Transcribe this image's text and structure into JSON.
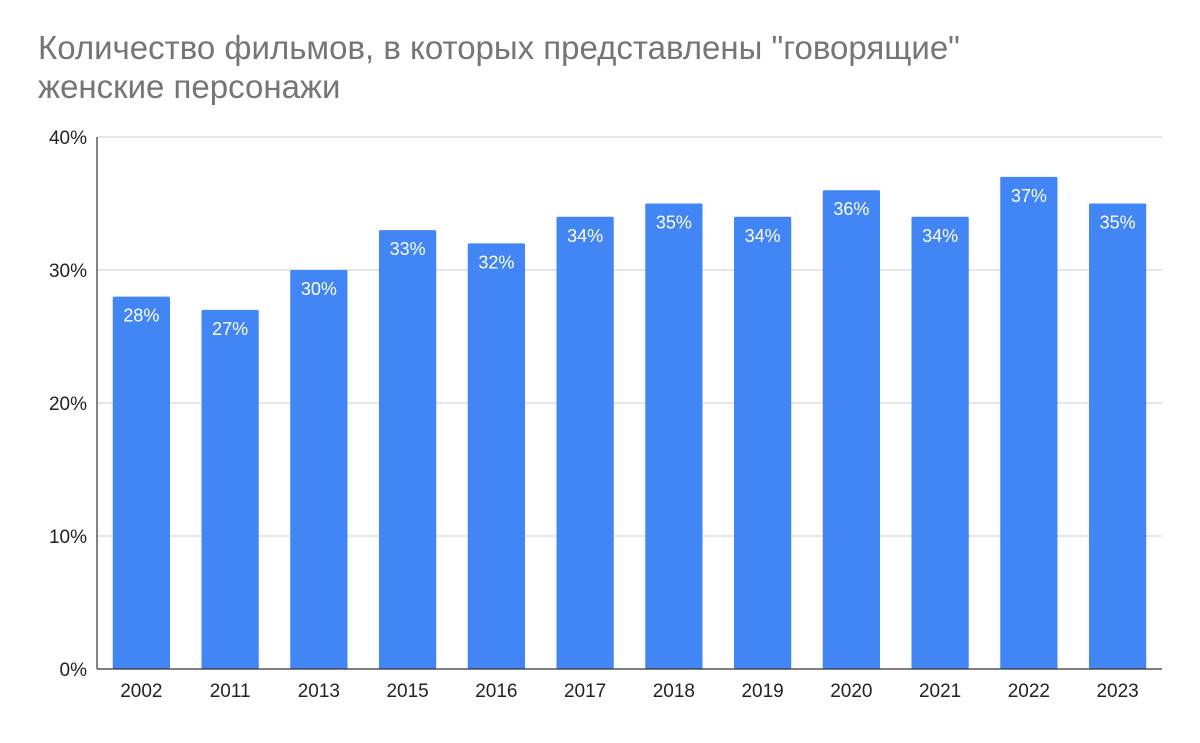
{
  "chart_data": {
    "type": "bar",
    "title": "Количество фильмов, в которых представлены \"говорящие\" женские персонажи",
    "title_lines": [
      "Количество фильмов, в которых представлены \"говорящие\"",
      "женские персонажи"
    ],
    "xlabel": "",
    "ylabel": "",
    "categories": [
      "2002",
      "2011",
      "2013",
      "2015",
      "2016",
      "2017",
      "2018",
      "2019",
      "2020",
      "2021",
      "2022",
      "2023"
    ],
    "values": [
      28,
      27,
      30,
      33,
      32,
      34,
      35,
      34,
      36,
      34,
      37,
      35
    ],
    "data_labels": [
      "28%",
      "27%",
      "30%",
      "33%",
      "32%",
      "34%",
      "35%",
      "34%",
      "36%",
      "34%",
      "37%",
      "35%"
    ],
    "ylim": [
      0,
      40
    ],
    "yticks": [
      0,
      10,
      20,
      30,
      40
    ],
    "ytick_labels": [
      "0%",
      "10%",
      "20%",
      "30%",
      "40%"
    ],
    "grid": true,
    "legend": "none",
    "colors": {
      "bar": "#4285f4",
      "grid": "#cccccc",
      "axis": "#333333",
      "title": "#757575",
      "label": "#ffffff"
    }
  }
}
